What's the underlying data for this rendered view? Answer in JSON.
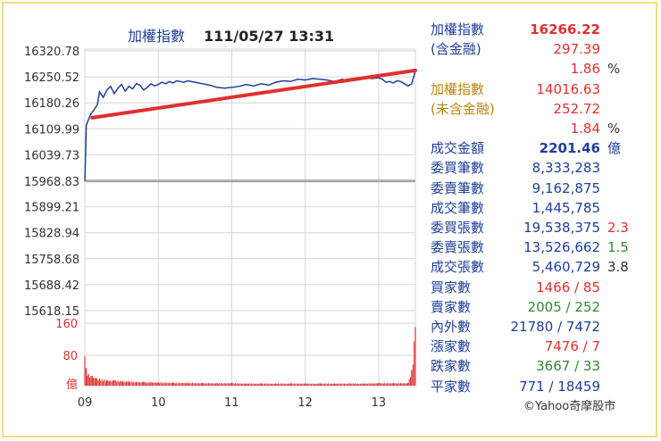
{
  "chart_data": {
    "type": "line",
    "title": "加權指數",
    "timestamp": "111/05/27 13:31",
    "y_ticks": [
      "16320.78",
      "16250.52",
      "16180.26",
      "16109.99",
      "16039.73",
      "15968.83",
      "15899.21",
      "15828.94",
      "15758.68",
      "15688.42",
      "15618.15"
    ],
    "ylim": [
      15618.15,
      16320.78
    ],
    "reference_value": 15968.83,
    "x_ticks": [
      "09",
      "10",
      "11",
      "12",
      "13"
    ],
    "time_range_hours": [
      9.0,
      13.5
    ],
    "series": [
      {
        "values": [
          [
            9.0,
            15968.8
          ],
          [
            9.02,
            16120
          ],
          [
            9.05,
            16135
          ],
          [
            9.08,
            16150
          ],
          [
            9.12,
            16160
          ],
          [
            9.17,
            16175
          ],
          [
            9.2,
            16210
          ],
          [
            9.25,
            16195
          ],
          [
            9.3,
            16215
          ],
          [
            9.35,
            16225
          ],
          [
            9.4,
            16205
          ],
          [
            9.45,
            16220
          ],
          [
            9.5,
            16230
          ],
          [
            9.55,
            16212
          ],
          [
            9.6,
            16225
          ],
          [
            9.65,
            16218
          ],
          [
            9.7,
            16232
          ],
          [
            9.75,
            16228
          ],
          [
            9.8,
            16215
          ],
          [
            9.85,
            16222
          ],
          [
            9.9,
            16232
          ],
          [
            9.95,
            16226
          ],
          [
            10.0,
            16230
          ],
          [
            10.05,
            16236
          ],
          [
            10.1,
            16232
          ],
          [
            10.15,
            16238
          ],
          [
            10.2,
            16234
          ],
          [
            10.25,
            16240
          ],
          [
            10.3,
            16238
          ],
          [
            10.35,
            16236
          ],
          [
            10.4,
            16240
          ],
          [
            10.5,
            16236
          ],
          [
            10.6,
            16232
          ],
          [
            10.7,
            16228
          ],
          [
            10.8,
            16222
          ],
          [
            10.9,
            16220
          ],
          [
            11.0,
            16222
          ],
          [
            11.1,
            16225
          ],
          [
            11.2,
            16230
          ],
          [
            11.3,
            16226
          ],
          [
            11.4,
            16232
          ],
          [
            11.5,
            16228
          ],
          [
            11.6,
            16236
          ],
          [
            11.7,
            16240
          ],
          [
            11.8,
            16238
          ],
          [
            11.9,
            16244
          ],
          [
            12.0,
            16242
          ],
          [
            12.1,
            16246
          ],
          [
            12.2,
            16244
          ],
          [
            12.3,
            16242
          ],
          [
            12.4,
            16238
          ],
          [
            12.5,
            16244
          ],
          [
            12.6,
            16240
          ],
          [
            12.7,
            16244
          ],
          [
            12.8,
            16250
          ],
          [
            12.9,
            16246
          ],
          [
            13.0,
            16248
          ],
          [
            13.05,
            16244
          ],
          [
            13.1,
            16236
          ],
          [
            13.15,
            16238
          ],
          [
            13.2,
            16234
          ],
          [
            13.25,
            16240
          ],
          [
            13.3,
            16238
          ],
          [
            13.35,
            16232
          ],
          [
            13.4,
            16226
          ],
          [
            13.45,
            16232
          ],
          [
            13.5,
            16266.22
          ]
        ]
      },
      {
        "values": [
          [
            9.1,
            16140
          ],
          [
            13.5,
            16268
          ]
        ]
      }
    ],
    "volume": {
      "y_ticks": [
        "160",
        "80",
        "億"
      ],
      "ylim": [
        0,
        160
      ],
      "values": [
        [
          9.0,
          75
        ],
        [
          9.02,
          40
        ],
        [
          9.05,
          30
        ],
        [
          9.1,
          25
        ],
        [
          9.15,
          20
        ],
        [
          9.2,
          18
        ],
        [
          9.3,
          15
        ],
        [
          9.4,
          14
        ],
        [
          9.5,
          12
        ],
        [
          9.6,
          12
        ],
        [
          9.7,
          10
        ],
        [
          9.8,
          10
        ],
        [
          9.9,
          9
        ],
        [
          10.0,
          9
        ],
        [
          10.2,
          8
        ],
        [
          10.4,
          8
        ],
        [
          10.6,
          7
        ],
        [
          10.8,
          7
        ],
        [
          11.0,
          7
        ],
        [
          11.2,
          6
        ],
        [
          11.4,
          6
        ],
        [
          11.6,
          6
        ],
        [
          11.8,
          6
        ],
        [
          12.0,
          6
        ],
        [
          12.2,
          6
        ],
        [
          12.4,
          6
        ],
        [
          12.6,
          6
        ],
        [
          12.8,
          6
        ],
        [
          13.0,
          7
        ],
        [
          13.2,
          7
        ],
        [
          13.4,
          7
        ],
        [
          13.45,
          40
        ],
        [
          13.5,
          150
        ]
      ]
    }
  },
  "stats": [
    {
      "label": "加權指數",
      "value": "16266.22",
      "label_color": "#1f3f99",
      "value_color": "#e0302f",
      "bold": true
    },
    {
      "label": "(含金融)",
      "value": "297.39",
      "label_color": "#1f3f99",
      "value_color": "#e0302f"
    },
    {
      "label": "",
      "value": "1.86",
      "extra": "%",
      "label_color": "#1f3f99",
      "value_color": "#e0302f",
      "extra_color": "#333"
    },
    {
      "label": "加權指數",
      "value": "14016.63",
      "label_color": "#b8860b",
      "value_color": "#e0302f"
    },
    {
      "label": "(未含金融)",
      "value": "252.72",
      "label_color": "#b8860b",
      "value_color": "#e0302f"
    },
    {
      "label": "",
      "value": "1.84",
      "extra": "%",
      "label_color": "#1f3f99",
      "value_color": "#e0302f",
      "extra_color": "#333"
    },
    {
      "label": "成交金額",
      "value": "2201.46",
      "extra": "億",
      "label_color": "#1f3f99",
      "value_color": "#1f3f99",
      "extra_color": "#1f3f99",
      "bold": true
    },
    {
      "label": "委買筆數",
      "value": "8,333,283",
      "label_color": "#1f3f99",
      "value_color": "#1f3f99"
    },
    {
      "label": "委賣筆數",
      "value": "9,162,875",
      "label_color": "#1f3f99",
      "value_color": "#1f3f99"
    },
    {
      "label": "成交筆數",
      "value": "1,445,785",
      "label_color": "#1f3f99",
      "value_color": "#1f3f99"
    },
    {
      "label": "委買張數",
      "value": "19,538,375",
      "extra": "2.3",
      "label_color": "#1f3f99",
      "value_color": "#1f3f99",
      "extra_color": "#e0302f"
    },
    {
      "label": "委賣張數",
      "value": "13,526,662",
      "extra": "1.5",
      "label_color": "#1f3f99",
      "value_color": "#1f3f99",
      "extra_color": "#2f8a2f"
    },
    {
      "label": "成交張數",
      "value": "5,460,729",
      "extra": "3.8",
      "label_color": "#1f3f99",
      "value_color": "#1f3f99",
      "extra_color": "#333"
    },
    {
      "label": "買家數",
      "value": "1466 / 85",
      "label_color": "#1f3f99",
      "value_color": "#e0302f"
    },
    {
      "label": "賣家數",
      "value": "2005 / 252",
      "label_color": "#1f3f99",
      "value_color": "#2f8a2f"
    },
    {
      "label": "內外數",
      "value": "21780 / 7472",
      "label_color": "#1f3f99",
      "value_color": "#1f3f99"
    },
    {
      "label": "漲家數",
      "value": "7476 / 7",
      "label_color": "#1f3f99",
      "value_color": "#e0302f"
    },
    {
      "label": "跌家數",
      "value": "3667 / 33",
      "label_color": "#1f3f99",
      "value_color": "#2f8a2f"
    },
    {
      "label": "平家數",
      "value": "771 / 18459",
      "label_color": "#1f3f99",
      "value_color": "#1f3f99"
    }
  ],
  "credit": "©Yahoo奇摩股市",
  "colors": {
    "index_line": "#1f3f99",
    "trend_line": "#e0302f",
    "reference_line": "#a8a8a8",
    "volume_bar": "#e0302f",
    "grid": "#d6d6d6",
    "axis_text": "#333333",
    "volume_axis_text": "#e0302f"
  }
}
